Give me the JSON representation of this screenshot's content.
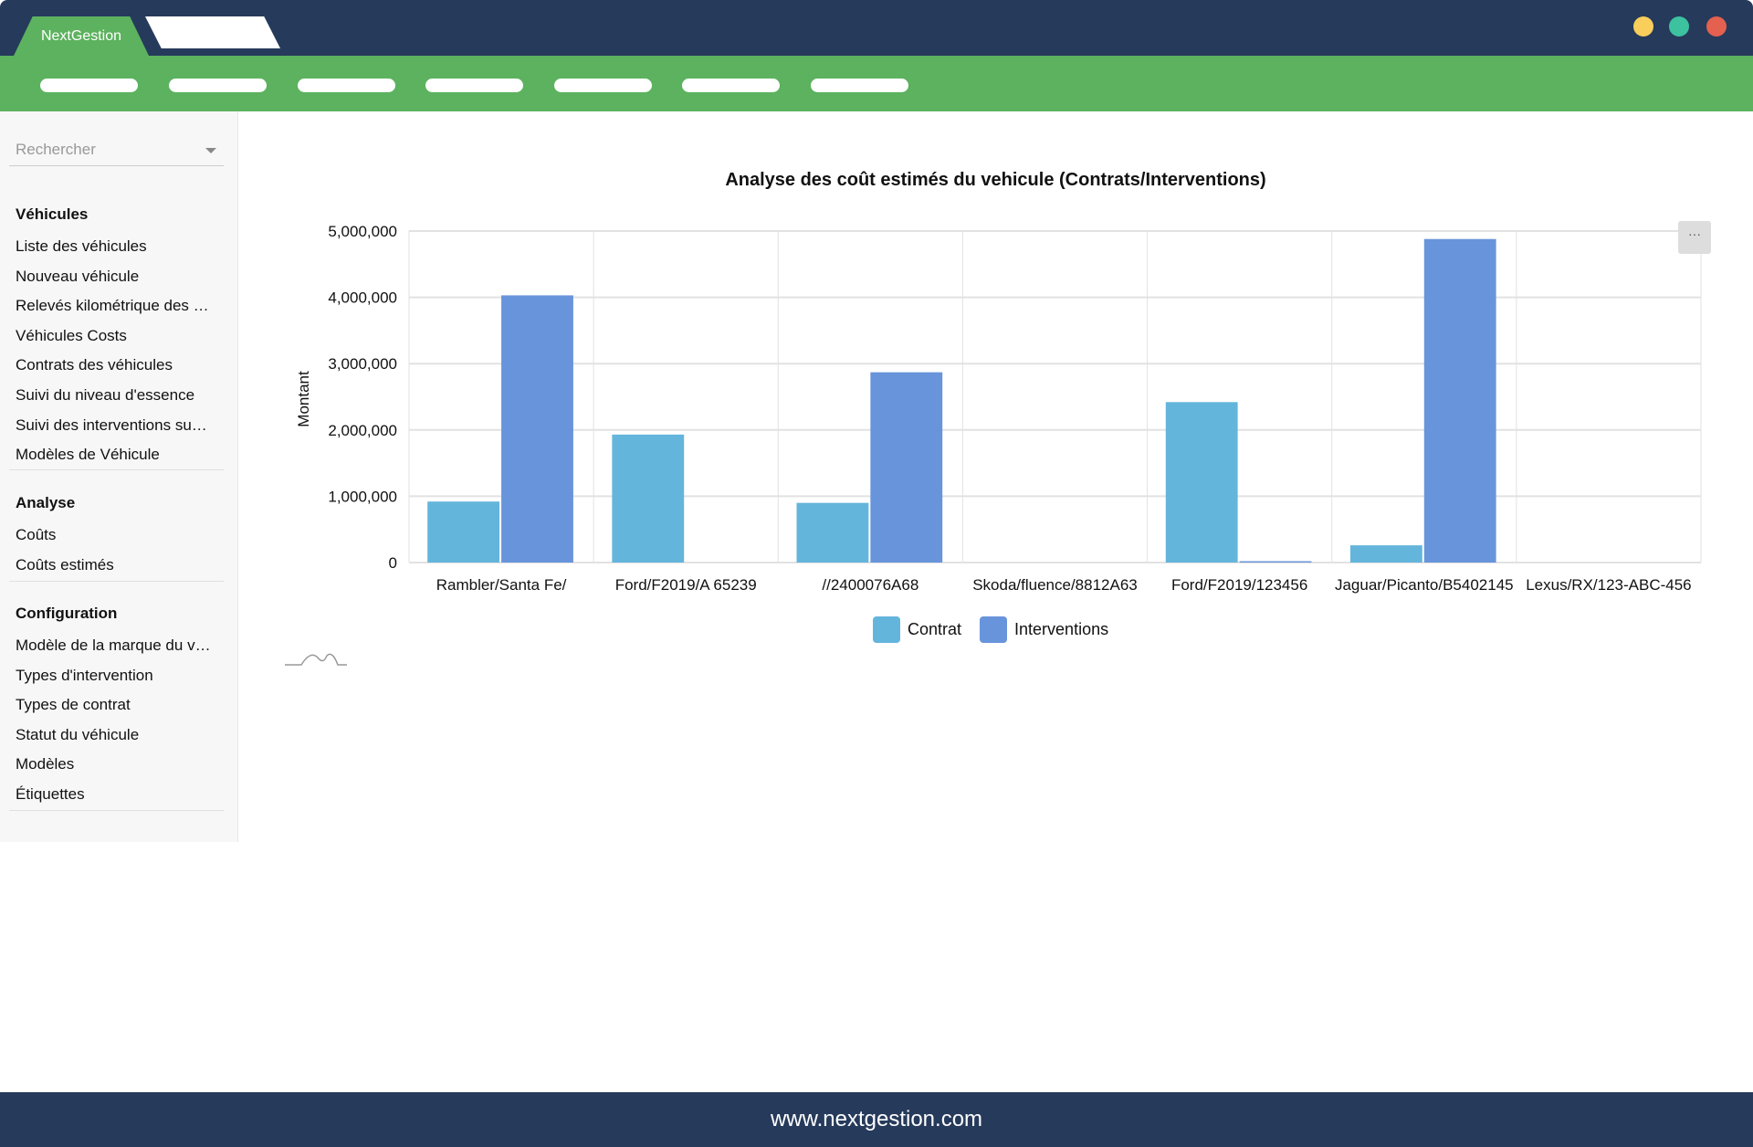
{
  "app": {
    "tab_label": "NextGestion",
    "window_dots": [
      "#f9ce5b",
      "#3cc29f",
      "#e4604f"
    ],
    "nav_pill_count": 7
  },
  "sidebar": {
    "search_placeholder": "Rechercher",
    "sections": [
      {
        "title": "Véhicules",
        "items": [
          "Liste des véhicules",
          "Nouveau véhicule",
          "Relevés kilométrique des …",
          "Véhicules Costs",
          "Contrats des véhicules",
          "Suivi du niveau d'essence",
          "Suivi des interventions su…",
          "Modèles de Véhicule"
        ]
      },
      {
        "title": "Analyse",
        "items": [
          "Coûts",
          "Coûts estimés"
        ]
      },
      {
        "title": "Configuration",
        "items": [
          "Modèle de la marque du v…",
          "Types d'intervention",
          "Types de contrat",
          "Statut du véhicule",
          "Modèles",
          "Étiquettes"
        ]
      }
    ]
  },
  "menu_button": "···",
  "chart_data": {
    "type": "bar",
    "title": "Analyse des coût estimés du vehicule (Contrats/Interventions)",
    "xlabel": "",
    "ylabel": "Montant",
    "ylim": [
      0,
      5000000
    ],
    "yticks": [
      "0",
      "1,000,000",
      "2,000,000",
      "3,000,000",
      "4,000,000",
      "5,000,000"
    ],
    "categories": [
      "Rambler/Santa Fe/",
      "Ford/F2019/A 65239",
      "//2400076A68",
      "Skoda/fluence/8812A63",
      "Ford/F2019/123456",
      "Jaguar/Picanto/B5402145",
      "Lexus/RX/123-ABC-456"
    ],
    "series": [
      {
        "name": "Contrat",
        "color": "#64b5dc",
        "values": [
          920000,
          1930000,
          900000,
          0,
          2420000,
          260000,
          0
        ]
      },
      {
        "name": "Interventions",
        "color": "#6894db",
        "values": [
          4030000,
          0,
          2870000,
          0,
          20000,
          4880000,
          0
        ]
      }
    ],
    "grid": true,
    "legend": "bottom"
  },
  "footer": {
    "url": "www.nextgestion.com"
  }
}
